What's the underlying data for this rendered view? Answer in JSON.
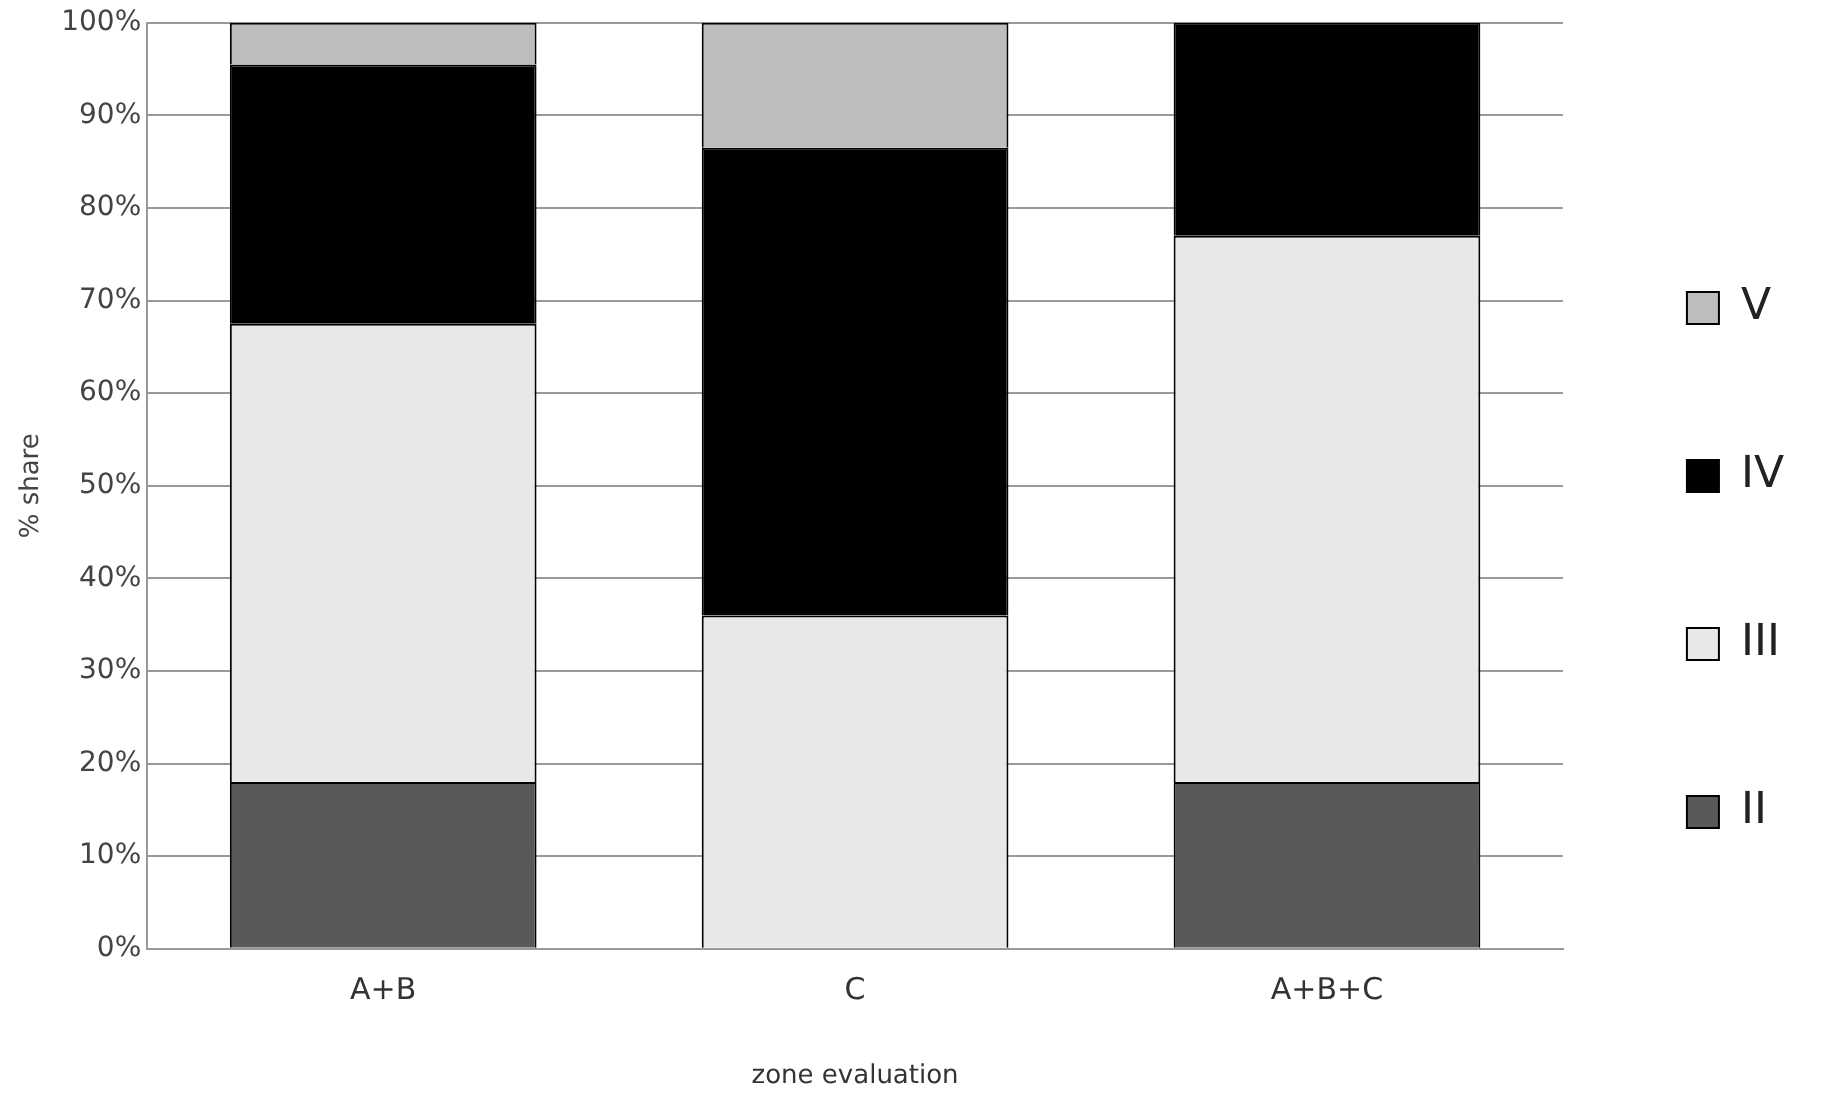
{
  "chart_data": {
    "type": "bar",
    "stacked": true,
    "xlabel": "zone evaluation",
    "ylabel": "% share",
    "categories": [
      "A+B",
      "C",
      "A+B+C"
    ],
    "series": [
      {
        "name": "II",
        "color": "#595959",
        "values": [
          18,
          0,
          18
        ]
      },
      {
        "name": "III",
        "color": "#e8e8e8",
        "values": [
          49.5,
          36,
          59
        ]
      },
      {
        "name": "IV",
        "color": "#000000",
        "values": [
          28,
          50.5,
          23
        ]
      },
      {
        "name": "V",
        "color": "#bdbdbd",
        "values": [
          4.5,
          13.5,
          0
        ]
      }
    ],
    "ylim": [
      0,
      100
    ],
    "yticks": [
      {
        "value": 0,
        "label": "0%"
      },
      {
        "value": 10,
        "label": "10%"
      },
      {
        "value": 20,
        "label": "20%"
      },
      {
        "value": 30,
        "label": "30%"
      },
      {
        "value": 40,
        "label": "40%"
      },
      {
        "value": 50,
        "label": "50%"
      },
      {
        "value": 60,
        "label": "60%"
      },
      {
        "value": 70,
        "label": "70%"
      },
      {
        "value": 80,
        "label": "80%"
      },
      {
        "value": 90,
        "label": "90%"
      },
      {
        "value": 100,
        "label": "100%"
      }
    ],
    "grid": "y",
    "legend": "right"
  }
}
